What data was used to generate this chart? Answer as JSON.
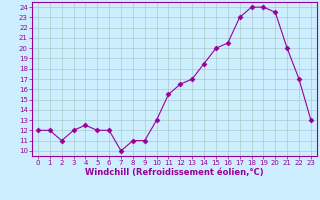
{
  "x": [
    0,
    1,
    2,
    3,
    4,
    5,
    6,
    7,
    8,
    9,
    10,
    11,
    12,
    13,
    14,
    15,
    16,
    17,
    18,
    19,
    20,
    21,
    22,
    23
  ],
  "y": [
    12,
    12,
    11,
    12,
    12.5,
    12,
    12,
    10,
    11,
    11,
    13,
    15.5,
    16.5,
    17,
    18.5,
    20,
    20.5,
    23,
    24,
    24,
    23.5,
    20,
    17,
    13
  ],
  "line_color": "#990099",
  "marker": "D",
  "marker_size": 2.5,
  "bg_color": "#cceeff",
  "grid_color": "#aacccc",
  "xlabel": "Windchill (Refroidissement éolien,°C)",
  "xlabel_color": "#990099",
  "yticks": [
    10,
    11,
    12,
    13,
    14,
    15,
    16,
    17,
    18,
    19,
    20,
    21,
    22,
    23,
    24
  ],
  "xticks": [
    0,
    1,
    2,
    3,
    4,
    5,
    6,
    7,
    8,
    9,
    10,
    11,
    12,
    13,
    14,
    15,
    16,
    17,
    18,
    19,
    20,
    21,
    22,
    23
  ],
  "ylim": [
    9.5,
    24.5
  ],
  "xlim": [
    -0.5,
    23.5
  ],
  "tick_fontsize": 5,
  "xlabel_fontsize": 6
}
